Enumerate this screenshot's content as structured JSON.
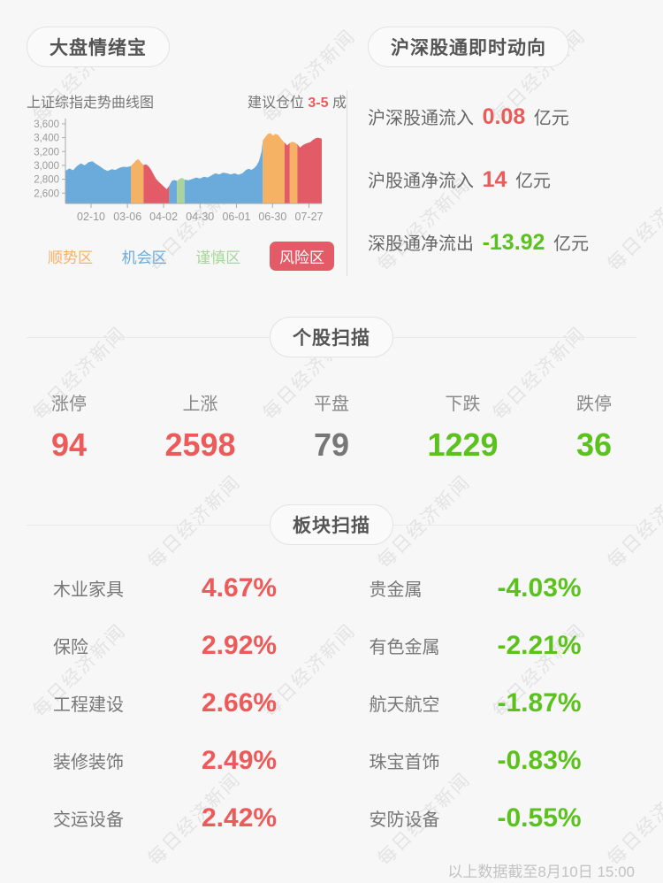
{
  "watermark": {
    "text": "每日经济新闻"
  },
  "sentiment": {
    "title": "大盘情绪宝",
    "chart_title": "上证综指走势曲线图",
    "position_prefix": "建议仓位 ",
    "position_value": "3-5",
    "position_suffix": " 成",
    "legend": [
      {
        "label": "顺势区",
        "color": "#f5b264",
        "pill": false
      },
      {
        "label": "机会区",
        "color": "#6aabdc",
        "pill": false
      },
      {
        "label": "谨慎区",
        "color": "#a9d49d",
        "pill": false
      },
      {
        "label": "风险区",
        "color": "#e25b66",
        "pill": true
      }
    ]
  },
  "northbound": {
    "title": "沪深股通即时动向",
    "rows": [
      {
        "label": "沪深股通流入",
        "value": "0.08",
        "unit": "亿元",
        "color": "#ec5a5a"
      },
      {
        "label": "沪股通净流入",
        "value": "14",
        "unit": "亿元",
        "color": "#ec5a5a"
      },
      {
        "label": "深股通净流出",
        "value": "-13.92",
        "unit": "亿元",
        "color": "#5bc21d"
      }
    ]
  },
  "stock_scan": {
    "title": "个股扫描",
    "items": [
      {
        "label": "涨停",
        "value": "94",
        "color": "#ec5a5a"
      },
      {
        "label": "上涨",
        "value": "2598",
        "color": "#ec5a5a"
      },
      {
        "label": "平盘",
        "value": "79",
        "color": "#777777"
      },
      {
        "label": "下跌",
        "value": "1229",
        "color": "#5bc21d"
      },
      {
        "label": "跌停",
        "value": "36",
        "color": "#5bc21d"
      }
    ]
  },
  "sector_scan": {
    "title": "板块扫描",
    "gainers": [
      {
        "label": "木业家具",
        "value": "4.67%"
      },
      {
        "label": "保险",
        "value": "2.92%"
      },
      {
        "label": "工程建设",
        "value": "2.66%"
      },
      {
        "label": "装修装饰",
        "value": "2.49%"
      },
      {
        "label": "交运设备",
        "value": "2.42%"
      }
    ],
    "losers": [
      {
        "label": "贵金属",
        "value": "-4.03%"
      },
      {
        "label": "有色金属",
        "value": "-2.21%"
      },
      {
        "label": "航天航空",
        "value": "-1.87%"
      },
      {
        "label": "珠宝首饰",
        "value": "-0.83%"
      },
      {
        "label": "安防设备",
        "value": "-0.55%"
      }
    ]
  },
  "footer": {
    "note": "以上数据截至8月10日 15:00"
  },
  "chart_data": {
    "type": "area",
    "title": "上证综指走势曲线图",
    "ylim": [
      2450,
      3650
    ],
    "grid": false,
    "y_ticks": [
      {
        "v": 2600,
        "label": "2,600"
      },
      {
        "v": 2800,
        "label": "2,800"
      },
      {
        "v": 3000,
        "label": "3,000"
      },
      {
        "v": 3200,
        "label": "3,200"
      },
      {
        "v": 3400,
        "label": "3,400"
      },
      {
        "v": 3600,
        "label": "3,600"
      }
    ],
    "x_ticks": [
      {
        "x": 10,
        "label": "02-10"
      },
      {
        "x": 24.2,
        "label": "03-06"
      },
      {
        "x": 38.3,
        "label": "04-02"
      },
      {
        "x": 52.5,
        "label": "04-30"
      },
      {
        "x": 66.7,
        "label": "06-01"
      },
      {
        "x": 80.8,
        "label": "06-30"
      },
      {
        "x": 95,
        "label": "07-27"
      }
    ],
    "zone_colors": {
      "顺势区": "#f5b264",
      "机会区": "#6aabdc",
      "谨慎区": "#a9d49d",
      "风险区": "#e25b66"
    },
    "segments": [
      {
        "zone": "机会区",
        "points": [
          [
            0,
            2920
          ],
          [
            1.5,
            2955
          ],
          [
            3,
            2930
          ],
          [
            4.5,
            2990
          ],
          [
            6,
            3030
          ],
          [
            7.5,
            3000
          ],
          [
            9,
            3045
          ],
          [
            10.5,
            3060
          ],
          [
            12,
            3020
          ],
          [
            13.5,
            2985
          ],
          [
            15,
            2945
          ],
          [
            16.5,
            2920
          ],
          [
            18,
            2945
          ],
          [
            19.5,
            2935
          ],
          [
            21,
            2965
          ],
          [
            22.5,
            2980
          ],
          [
            24,
            2975
          ],
          [
            25.5,
            2990
          ]
        ]
      },
      {
        "zone": "顺势区",
        "points": [
          [
            25.5,
            2990
          ],
          [
            26.5,
            3030
          ],
          [
            27.5,
            3070
          ],
          [
            28.5,
            3090
          ],
          [
            29.5,
            3040
          ],
          [
            30.5,
            3005
          ]
        ]
      },
      {
        "zone": "风险区",
        "points": [
          [
            30.5,
            3005
          ],
          [
            31.5,
            3015
          ],
          [
            32.5,
            2985
          ],
          [
            33.5,
            2930
          ],
          [
            34.5,
            2860
          ],
          [
            35.5,
            2800
          ],
          [
            36.5,
            2760
          ],
          [
            37.5,
            2725
          ],
          [
            38.5,
            2690
          ],
          [
            39.5,
            2655
          ],
          [
            40.5,
            2705
          ]
        ]
      },
      {
        "zone": "机会区",
        "points": [
          [
            40.5,
            2705
          ],
          [
            41.5,
            2775
          ],
          [
            42.5,
            2790
          ],
          [
            43.5,
            2775
          ]
        ]
      },
      {
        "zone": "谨慎区",
        "points": [
          [
            43.5,
            2775
          ],
          [
            44.5,
            2805
          ],
          [
            45.5,
            2820
          ],
          [
            46.5,
            2795
          ]
        ]
      },
      {
        "zone": "机会区",
        "points": [
          [
            46.5,
            2795
          ],
          [
            48,
            2785
          ],
          [
            49.5,
            2805
          ],
          [
            51,
            2825
          ],
          [
            52.5,
            2810
          ],
          [
            54,
            2835
          ],
          [
            55.5,
            2825
          ],
          [
            57,
            2855
          ],
          [
            58.5,
            2885
          ],
          [
            60,
            2870
          ],
          [
            61.5,
            2895
          ],
          [
            63,
            2885
          ],
          [
            64.5,
            2870
          ],
          [
            66,
            2885
          ],
          [
            67.5,
            2865
          ],
          [
            69,
            2885
          ],
          [
            70.5,
            2935
          ],
          [
            71.5,
            2950
          ],
          [
            72.5,
            2935
          ],
          [
            73.5,
            2955
          ],
          [
            74.5,
            2995
          ],
          [
            75.5,
            3060
          ],
          [
            76.5,
            3200
          ],
          [
            77,
            3360
          ]
        ]
      },
      {
        "zone": "顺势区",
        "points": [
          [
            77,
            3360
          ],
          [
            78,
            3410
          ],
          [
            79,
            3455
          ],
          [
            80,
            3465
          ],
          [
            81,
            3430
          ],
          [
            82,
            3455
          ],
          [
            83,
            3440
          ],
          [
            84,
            3390
          ],
          [
            85,
            3345
          ],
          [
            85.5,
            3330
          ]
        ]
      },
      {
        "zone": "风险区",
        "points": [
          [
            85.5,
            3330
          ],
          [
            86.5,
            3290
          ],
          [
            87.5,
            3325
          ]
        ]
      },
      {
        "zone": "顺势区",
        "points": [
          [
            87.5,
            3325
          ],
          [
            88.5,
            3340
          ],
          [
            89.5,
            3330
          ],
          [
            90.5,
            3305
          ]
        ]
      },
      {
        "zone": "风险区",
        "points": [
          [
            90.5,
            3305
          ],
          [
            91.5,
            3255
          ],
          [
            92.5,
            3290
          ],
          [
            93.5,
            3310
          ],
          [
            94.5,
            3325
          ],
          [
            95.5,
            3335
          ],
          [
            96.5,
            3365
          ],
          [
            97.5,
            3390
          ],
          [
            98.5,
            3400
          ],
          [
            99.5,
            3390
          ],
          [
            100,
            3385
          ]
        ]
      }
    ]
  }
}
